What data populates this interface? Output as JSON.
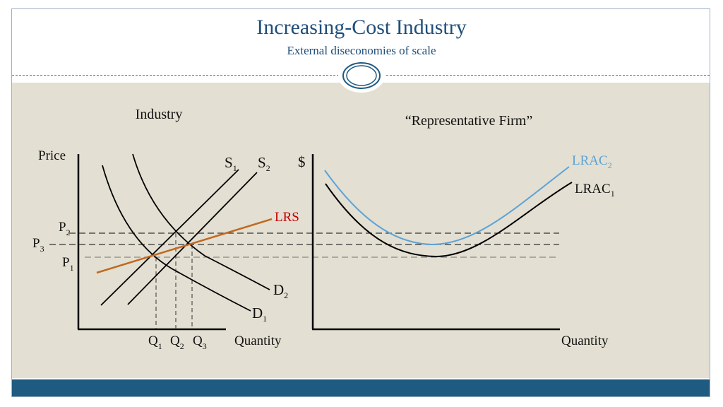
{
  "slide": {
    "title": "Increasing-Cost Industry",
    "subtitle": "External diseconomies of scale"
  },
  "colors": {
    "title": "#1f4e79",
    "content_bg": "#e3dfd2",
    "footer_bar": "#1f5a80",
    "lrs_line": "#c0691e",
    "lrs_label": "#c00000",
    "lrac2_curve": "#5ba3d6"
  },
  "industry_panel": {
    "heading": "Industry",
    "y_axis_label": "Price",
    "x_axis_label": "Quantity",
    "price_labels": [
      {
        "letter": "P",
        "sub": "2"
      },
      {
        "letter": "P",
        "sub": "3"
      },
      {
        "letter": "P",
        "sub": "1"
      }
    ],
    "quantity_labels": [
      {
        "letter": "Q",
        "sub": "1"
      },
      {
        "letter": "Q",
        "sub": "2"
      },
      {
        "letter": "Q",
        "sub": "3"
      }
    ],
    "supply_labels": [
      {
        "letter": "S",
        "sub": "1"
      },
      {
        "letter": "S",
        "sub": "2"
      }
    ],
    "demand_labels": [
      {
        "letter": "D",
        "sub": "2"
      },
      {
        "letter": "D",
        "sub": "1"
      }
    ],
    "lrs_label": "LRS"
  },
  "firm_panel": {
    "heading": "“Representative Firm”",
    "y_axis_label": "$",
    "x_axis_label": "Quantity",
    "curve_labels": [
      {
        "letter": "LRAC",
        "sub": "2"
      },
      {
        "letter": "LRAC",
        "sub": "1"
      }
    ]
  }
}
